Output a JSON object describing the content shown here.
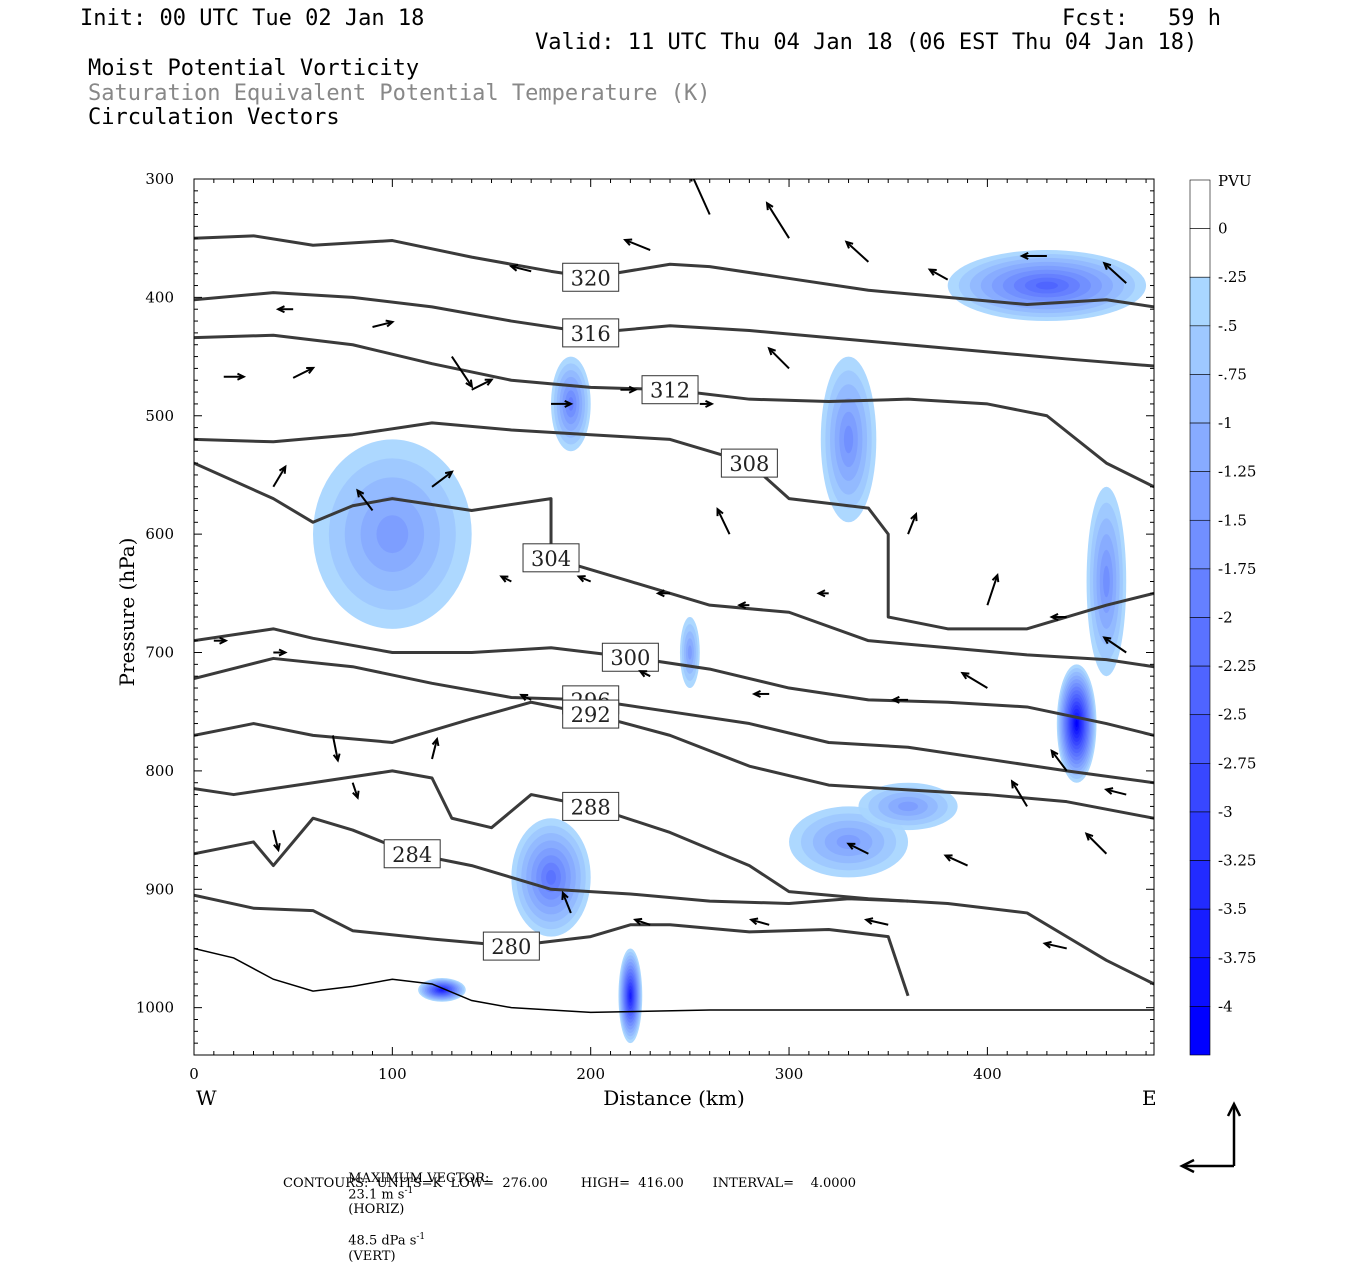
{
  "header": {
    "init": "Init: 00 UTC Tue 02 Jan 18",
    "fcst": "Fcst:   59 h",
    "valid": "Valid: 11 UTC Thu 04 Jan 18 (06 EST Thu 04 Jan 18)",
    "field1": "Moist Potential Vorticity",
    "field2": "Saturation Equivalent Potential Temperature (K)",
    "field3": "Circulation Vectors"
  },
  "footer": {
    "max_vector_label": "MAXIMUM VECTOR:",
    "max_horiz": "23.1 m s",
    "horiz_unit": "(HORIZ)",
    "max_vert": "48.5 dPa s",
    "vert_unit": "(VERT)",
    "sup": "-1",
    "contours": "CONTOURS:  UNITS=K  LOW=  276.00        HIGH=  416.00       INTERVAL=    4.0000"
  },
  "colors": {
    "contour": "#3a3a3a",
    "pv_light": "#b3e3fb",
    "pv_dark": "#0000ff",
    "vector": "#000000"
  },
  "chart_data": {
    "type": "cross-section",
    "xlabel": "Distance (km)",
    "ylabel": "Pressure (hPa)",
    "xlim": [
      0,
      484
    ],
    "ylim": [
      1040,
      300
    ],
    "x_ticks": [
      0,
      100,
      200,
      300,
      400
    ],
    "y_ticks": [
      300,
      400,
      500,
      600,
      700,
      800,
      900,
      1000
    ],
    "x_end_labels": {
      "left": "W",
      "right": "E"
    },
    "colorbar": {
      "label": "PVU",
      "levels": [
        "0",
        "-.25",
        "-.5",
        "-.75",
        "-1",
        "-1.25",
        "-1.5",
        "-1.75",
        "-2",
        "-2.25",
        "-2.5",
        "-2.75",
        "-3",
        "-3.25",
        "-3.5",
        "-3.75",
        "-4"
      ]
    },
    "theta_contours": [
      {
        "value": 320,
        "points": [
          [
            0,
            350
          ],
          [
            30,
            348
          ],
          [
            60,
            356
          ],
          [
            100,
            352
          ],
          [
            140,
            366
          ],
          [
            180,
            378
          ],
          [
            200,
            383
          ],
          [
            240,
            372
          ],
          [
            260,
            374
          ],
          [
            300,
            384
          ],
          [
            340,
            394
          ],
          [
            380,
            400
          ],
          [
            420,
            406
          ],
          [
            460,
            402
          ],
          [
            484,
            408
          ]
        ]
      },
      {
        "value": 316,
        "points": [
          [
            0,
            402
          ],
          [
            40,
            396
          ],
          [
            80,
            400
          ],
          [
            120,
            408
          ],
          [
            160,
            420
          ],
          [
            200,
            430
          ],
          [
            240,
            424
          ],
          [
            280,
            428
          ],
          [
            320,
            434
          ],
          [
            360,
            440
          ],
          [
            400,
            446
          ],
          [
            440,
            452
          ],
          [
            484,
            458
          ]
        ]
      },
      {
        "value": 312,
        "points": [
          [
            0,
            434
          ],
          [
            40,
            432
          ],
          [
            80,
            440
          ],
          [
            120,
            456
          ],
          [
            160,
            470
          ],
          [
            200,
            476
          ],
          [
            240,
            478
          ],
          [
            280,
            486
          ],
          [
            320,
            488
          ],
          [
            360,
            486
          ],
          [
            400,
            490
          ],
          [
            430,
            500
          ],
          [
            460,
            540
          ],
          [
            484,
            560
          ]
        ]
      },
      {
        "value": 308,
        "points": [
          [
            0,
            520
          ],
          [
            40,
            522
          ],
          [
            80,
            516
          ],
          [
            120,
            506
          ],
          [
            160,
            512
          ],
          [
            200,
            516
          ],
          [
            240,
            520
          ],
          [
            280,
            540
          ],
          [
            300,
            570
          ],
          [
            340,
            578
          ],
          [
            350,
            600
          ],
          [
            350,
            670
          ],
          [
            380,
            680
          ],
          [
            420,
            680
          ],
          [
            460,
            660
          ],
          [
            484,
            650
          ]
        ]
      },
      {
        "value": 304,
        "points": [
          [
            0,
            540
          ],
          [
            40,
            570
          ],
          [
            60,
            590
          ],
          [
            80,
            576
          ],
          [
            100,
            570
          ],
          [
            140,
            580
          ],
          [
            180,
            570
          ],
          [
            180,
            620
          ],
          [
            220,
            640
          ],
          [
            260,
            660
          ],
          [
            300,
            666
          ],
          [
            340,
            690
          ],
          [
            380,
            696
          ],
          [
            420,
            702
          ],
          [
            460,
            706
          ],
          [
            484,
            712
          ]
        ]
      },
      {
        "value": 300,
        "points": [
          [
            0,
            690
          ],
          [
            40,
            680
          ],
          [
            60,
            688
          ],
          [
            100,
            700
          ],
          [
            140,
            700
          ],
          [
            180,
            696
          ],
          [
            220,
            704
          ],
          [
            260,
            714
          ],
          [
            300,
            730
          ],
          [
            340,
            740
          ],
          [
            380,
            742
          ],
          [
            420,
            746
          ],
          [
            460,
            760
          ],
          [
            484,
            770
          ]
        ]
      },
      {
        "value": 296,
        "points": [
          [
            0,
            722
          ],
          [
            40,
            705
          ],
          [
            80,
            712
          ],
          [
            120,
            726
          ],
          [
            160,
            738
          ],
          [
            200,
            740
          ],
          [
            240,
            750
          ],
          [
            280,
            760
          ],
          [
            320,
            776
          ],
          [
            360,
            780
          ],
          [
            400,
            790
          ],
          [
            440,
            800
          ],
          [
            484,
            810
          ]
        ]
      },
      {
        "value": 292,
        "points": [
          [
            0,
            770
          ],
          [
            30,
            760
          ],
          [
            60,
            770
          ],
          [
            100,
            776
          ],
          [
            140,
            756
          ],
          [
            170,
            742
          ],
          [
            200,
            752
          ],
          [
            240,
            770
          ],
          [
            280,
            796
          ],
          [
            320,
            812
          ],
          [
            360,
            816
          ],
          [
            400,
            820
          ],
          [
            440,
            826
          ],
          [
            484,
            840
          ]
        ]
      },
      {
        "value": 288,
        "points": [
          [
            0,
            815
          ],
          [
            20,
            820
          ],
          [
            60,
            810
          ],
          [
            100,
            800
          ],
          [
            120,
            806
          ],
          [
            130,
            840
          ],
          [
            150,
            848
          ],
          [
            170,
            820
          ],
          [
            200,
            830
          ],
          [
            240,
            852
          ],
          [
            280,
            880
          ],
          [
            300,
            902
          ],
          [
            340,
            908
          ],
          [
            380,
            912
          ],
          [
            420,
            920
          ],
          [
            440,
            940
          ],
          [
            460,
            960
          ],
          [
            484,
            980
          ]
        ]
      },
      {
        "value": 284,
        "points": [
          [
            0,
            870
          ],
          [
            30,
            860
          ],
          [
            40,
            880
          ],
          [
            60,
            840
          ],
          [
            80,
            850
          ],
          [
            110,
            870
          ],
          [
            140,
            880
          ],
          [
            180,
            900
          ],
          [
            220,
            904
          ],
          [
            260,
            910
          ],
          [
            300,
            912
          ],
          [
            330,
            908
          ],
          [
            360,
            910
          ]
        ]
      },
      {
        "value": 280,
        "points": [
          [
            0,
            905
          ],
          [
            30,
            916
          ],
          [
            60,
            918
          ],
          [
            80,
            935
          ],
          [
            120,
            942
          ],
          [
            160,
            948
          ],
          [
            200,
            940
          ],
          [
            220,
            930
          ],
          [
            240,
            930
          ],
          [
            280,
            936
          ],
          [
            320,
            934
          ],
          [
            350,
            940
          ],
          [
            360,
            990
          ]
        ]
      }
    ],
    "ground_surface": [
      [
        0,
        950
      ],
      [
        20,
        958
      ],
      [
        40,
        976
      ],
      [
        60,
        986
      ],
      [
        80,
        982
      ],
      [
        100,
        976
      ],
      [
        120,
        980
      ],
      [
        140,
        994
      ],
      [
        160,
        1000
      ],
      [
        200,
        1004
      ],
      [
        260,
        1002
      ],
      [
        300,
        1002
      ],
      [
        400,
        1002
      ],
      [
        484,
        1002
      ]
    ],
    "pv_blobs": [
      {
        "x": 330,
        "p": 520,
        "rx": 14,
        "rp": 70,
        "min": -1.5
      },
      {
        "x": 190,
        "p": 490,
        "rx": 10,
        "rp": 40,
        "min": -1.75
      },
      {
        "x": 430,
        "p": 390,
        "rx": 50,
        "rp": 30,
        "min": -2.25
      },
      {
        "x": 445,
        "p": 760,
        "rx": 10,
        "rp": 50,
        "min": -4
      },
      {
        "x": 460,
        "p": 640,
        "rx": 10,
        "rp": 80,
        "min": -1.5
      },
      {
        "x": 180,
        "p": 890,
        "rx": 20,
        "rp": 50,
        "min": -2
      },
      {
        "x": 100,
        "p": 600,
        "rx": 40,
        "rp": 80,
        "min": -1.25
      },
      {
        "x": 330,
        "p": 860,
        "rx": 30,
        "rp": 30,
        "min": -1.25
      },
      {
        "x": 360,
        "p": 830,
        "rx": 25,
        "rp": 20,
        "min": -1.25
      },
      {
        "x": 250,
        "p": 700,
        "rx": 5,
        "rp": 30,
        "min": -1.25
      },
      {
        "x": 220,
        "p": 990,
        "rx": 6,
        "rp": 40,
        "min": -3.5
      },
      {
        "x": 125,
        "p": 985,
        "rx": 12,
        "rp": 10,
        "min": -3.5
      }
    ],
    "vectors": [
      [
        15,
        467,
        20,
        0
      ],
      [
        50,
        468,
        20,
        -10
      ],
      [
        90,
        425,
        20,
        -5
      ],
      [
        140,
        478,
        20,
        -10
      ],
      [
        180,
        490,
        20,
        0
      ],
      [
        215,
        478,
        15,
        0
      ],
      [
        255,
        490,
        12,
        0
      ],
      [
        300,
        460,
        -20,
        -20
      ],
      [
        270,
        600,
        -12,
        -25
      ],
      [
        260,
        330,
        -18,
        -40
      ],
      [
        300,
        350,
        -22,
        -35
      ],
      [
        340,
        370,
        -22,
        -20
      ],
      [
        380,
        385,
        -18,
        -10
      ],
      [
        430,
        365,
        -25,
        0
      ],
      [
        470,
        388,
        -22,
        -20
      ],
      [
        230,
        360,
        -25,
        -10
      ],
      [
        170,
        378,
        -20,
        -5
      ],
      [
        130,
        450,
        20,
        30
      ],
      [
        50,
        410,
        -15,
        0
      ],
      [
        120,
        560,
        20,
        -15
      ],
      [
        90,
        580,
        -15,
        -20
      ],
      [
        40,
        560,
        12,
        -20
      ],
      [
        160,
        640,
        -10,
        -5
      ],
      [
        200,
        640,
        -12,
        -5
      ],
      [
        240,
        650,
        -12,
        0
      ],
      [
        280,
        660,
        -10,
        0
      ],
      [
        320,
        650,
        -10,
        0
      ],
      [
        360,
        600,
        8,
        -20
      ],
      [
        400,
        660,
        10,
        -30
      ],
      [
        440,
        670,
        -15,
        0
      ],
      [
        470,
        700,
        -22,
        -15
      ],
      [
        400,
        730,
        -25,
        -15
      ],
      [
        360,
        740,
        -15,
        0
      ],
      [
        290,
        735,
        -15,
        0
      ],
      [
        230,
        720,
        -10,
        -5
      ],
      [
        170,
        740,
        -10,
        -5
      ],
      [
        70,
        770,
        5,
        25
      ],
      [
        10,
        690,
        12,
        0
      ],
      [
        40,
        700,
        12,
        0
      ],
      [
        120,
        790,
        5,
        -20
      ],
      [
        340,
        870,
        -20,
        -10
      ],
      [
        390,
        880,
        -22,
        -10
      ],
      [
        470,
        820,
        -20,
        -5
      ],
      [
        420,
        830,
        -15,
        -25
      ],
      [
        440,
        800,
        -15,
        -20
      ],
      [
        460,
        870,
        -20,
        -20
      ],
      [
        350,
        930,
        -22,
        -5
      ],
      [
        290,
        930,
        -18,
        -5
      ],
      [
        230,
        930,
        -15,
        -5
      ],
      [
        190,
        920,
        -8,
        -20
      ],
      [
        80,
        810,
        5,
        15
      ],
      [
        40,
        850,
        5,
        20
      ],
      [
        440,
        950,
        -22,
        -5
      ]
    ]
  }
}
